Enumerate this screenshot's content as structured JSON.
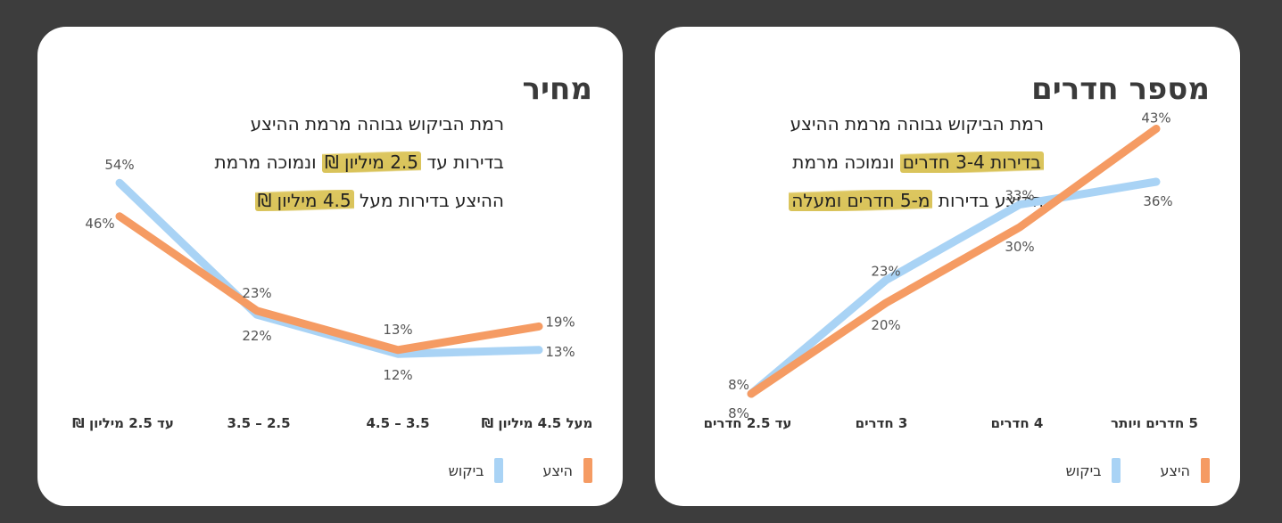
{
  "colors": {
    "offer": "#f59b63",
    "demand": "#a9d3f5",
    "highlight": "#d9c35a"
  },
  "legend": {
    "offer": "היצע",
    "demand": "ביקוש"
  },
  "rooms": {
    "title": "מספר חדרים",
    "desc_line1": "רמת הביקוש גבוהה מרמת ההיצע",
    "desc_line2_hl": "בדירות 3-4 חדרים",
    "desc_line2_rest": " ונמוכה מרמת",
    "desc_line3_pre": "ההיצע בדירות ",
    "desc_line3_hl": "מ-5 חדרים ומעלה"
  },
  "price": {
    "title": "מחיר",
    "desc_line1": "רמת הביקוש גבוהה מרמת ההיצע",
    "desc_line2_pre": "בדירות עד ",
    "desc_line2_hl": "2.5 מיליון ₪",
    "desc_line2_rest": " ונמוכה מרמת",
    "desc_line3_pre": "ההיצע בדירות מעל ",
    "desc_line3_hl": "4.5 מיליון ₪"
  },
  "chart_data": [
    {
      "type": "line",
      "categories": [
        "עד 2.5 חדרים",
        "3 חדרים",
        "4 חדרים",
        "5 חדרים ויותר"
      ],
      "series": [
        {
          "name": "היצע",
          "values": [
            8,
            20,
            30,
            43
          ],
          "labels": [
            "8%",
            "20%",
            "30%",
            "43%"
          ]
        },
        {
          "name": "ביקוש",
          "values": [
            8,
            23,
            33,
            36
          ],
          "labels": [
            "8%",
            "23%",
            "33%",
            "36%"
          ]
        }
      ],
      "ylim": [
        0,
        60
      ],
      "legend": "bottom-right",
      "grid": false
    },
    {
      "type": "line",
      "categories": [
        "עד 2.5 מיליון ₪",
        "2.5 – 3.5",
        "3.5 – 4.5",
        "מעל 4.5 מיליון ₪"
      ],
      "series": [
        {
          "name": "היצע",
          "values": [
            46,
            23,
            13,
            19
          ],
          "labels": [
            "46%",
            "23%",
            "13%",
            "19%"
          ]
        },
        {
          "name": "ביקוש",
          "values": [
            54,
            22,
            12,
            13
          ],
          "labels": [
            "54%",
            "22%",
            "12%",
            "13%"
          ]
        }
      ],
      "ylim": [
        0,
        60
      ],
      "legend": "bottom-right",
      "grid": false
    }
  ]
}
